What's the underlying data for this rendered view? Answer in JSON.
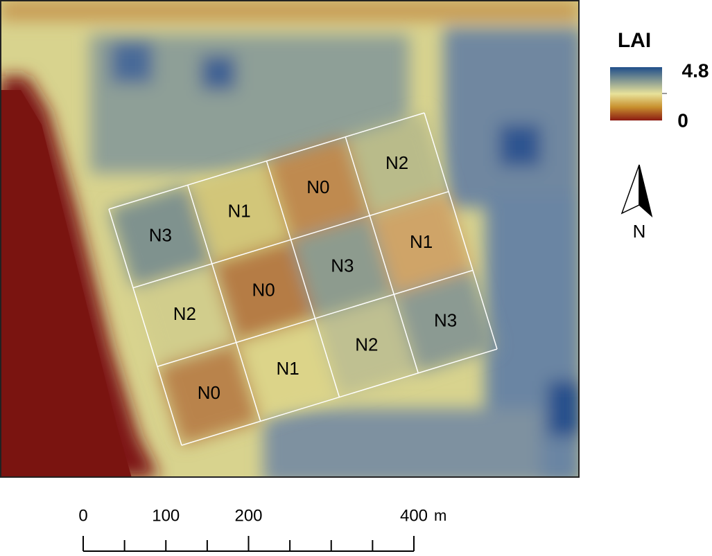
{
  "legend": {
    "title": "LAI",
    "max": "4.8",
    "min": "0"
  },
  "north_arrow": {
    "label": "N"
  },
  "plots": {
    "rows": [
      [
        "N3",
        "N1",
        "N0",
        "N2"
      ],
      [
        "N2",
        "N0",
        "N3",
        "N1"
      ],
      [
        "N0",
        "N1",
        "N2",
        "N3"
      ]
    ]
  },
  "scale_bar": {
    "labels": [
      "0",
      "100",
      "200",
      "400"
    ],
    "unit": "m"
  }
}
